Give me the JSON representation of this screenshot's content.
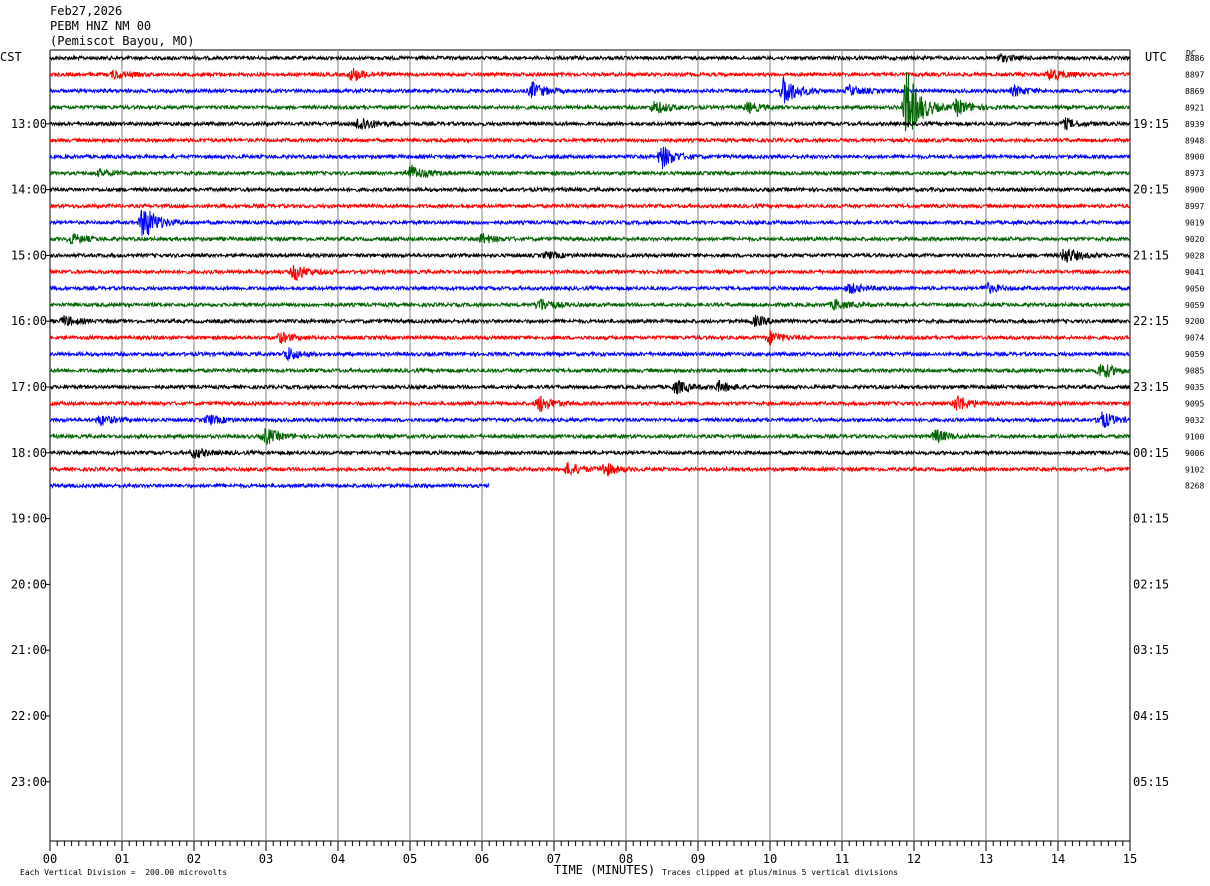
{
  "header": {
    "date": "Feb27,2026",
    "station": "PEBM HNZ NM 00",
    "location": "(Pemiscot Bayou, MO)"
  },
  "left_axis_label": "CST",
  "right_axis_label": "UTC",
  "dc_label": "DC",
  "footer": {
    "vertical_division": "Each Vertical Division =  200.00 microvolts",
    "clip_note": "Traces clipped at plus/minus 5 vertical divisions"
  },
  "colors": {
    "black": "#000000",
    "red": "#ff0000",
    "blue": "#0000ff",
    "green": "#006400",
    "grid": "#808080"
  },
  "chart_data": {
    "type": "line",
    "subtype": "helicorder seismogram",
    "xlabel": "TIME (MINUTES)",
    "x_ticks": [
      "00",
      "01",
      "02",
      "03",
      "04",
      "05",
      "06",
      "07",
      "08",
      "09",
      "10",
      "11",
      "12",
      "13",
      "14",
      "15"
    ],
    "xlim": [
      0,
      15
    ],
    "minutes_per_line": 15,
    "lines_per_hour": 4,
    "left_hour_labels": [
      "13:00",
      "14:00",
      "15:00",
      "16:00",
      "17:00",
      "18:00",
      "19:00",
      "20:00",
      "21:00",
      "22:00",
      "23:00"
    ],
    "right_hour_labels": [
      "19:15",
      "20:15",
      "21:15",
      "22:15",
      "23:15",
      "00:15",
      "01:15",
      "02:15",
      "03:15",
      "04:15",
      "05:15"
    ],
    "trace_color_cycle": [
      "black",
      "red",
      "blue",
      "green"
    ],
    "dc_offsets": [
      "8886",
      "8897",
      "8869",
      "8921",
      "8939",
      "8948",
      "8900",
      "8973",
      "8900",
      "8997",
      "9019",
      "9020",
      "9028",
      "9041",
      "9050",
      "9059",
      "9200",
      "9074",
      "9059",
      "9085",
      "9035",
      "9095",
      "9032",
      "9100",
      "9006",
      "9102",
      "8268"
    ],
    "last_trace_end_minute": 6.1,
    "events": [
      {
        "trace": 1,
        "minute": 0.9,
        "amp": 0.25
      },
      {
        "trace": 1,
        "minute": 4.2,
        "amp": 0.4
      },
      {
        "trace": 1,
        "minute": 13.9,
        "amp": 0.4
      },
      {
        "trace": 0,
        "minute": 13.2,
        "amp": 0.2
      },
      {
        "trace": 2,
        "minute": 6.7,
        "amp": 0.5
      },
      {
        "trace": 2,
        "minute": 10.2,
        "amp": 0.9
      },
      {
        "trace": 2,
        "minute": 11.1,
        "amp": 0.3
      },
      {
        "trace": 2,
        "minute": 13.4,
        "amp": 0.3
      },
      {
        "trace": 3,
        "minute": 8.4,
        "amp": 0.4
      },
      {
        "trace": 3,
        "minute": 9.7,
        "amp": 0.3
      },
      {
        "trace": 3,
        "minute": 11.9,
        "amp": 2.3
      },
      {
        "trace": 3,
        "minute": 12.6,
        "amp": 0.5
      },
      {
        "trace": 4,
        "minute": 4.3,
        "amp": 0.5
      },
      {
        "trace": 4,
        "minute": 14.1,
        "amp": 0.3
      },
      {
        "trace": 6,
        "minute": 8.5,
        "amp": 0.7
      },
      {
        "trace": 7,
        "minute": 5.0,
        "amp": 0.5
      },
      {
        "trace": 7,
        "minute": 0.7,
        "amp": 0.2
      },
      {
        "trace": 10,
        "minute": 1.3,
        "amp": 1.1
      },
      {
        "trace": 11,
        "minute": 0.3,
        "amp": 0.3
      },
      {
        "trace": 11,
        "minute": 6.0,
        "amp": 0.3
      },
      {
        "trace": 12,
        "minute": 6.9,
        "amp": 0.2
      },
      {
        "trace": 12,
        "minute": 14.1,
        "amp": 0.5
      },
      {
        "trace": 13,
        "minute": 3.4,
        "amp": 0.5
      },
      {
        "trace": 14,
        "minute": 11.1,
        "amp": 0.3
      },
      {
        "trace": 14,
        "minute": 13.0,
        "amp": 0.3
      },
      {
        "trace": 15,
        "minute": 6.8,
        "amp": 0.4
      },
      {
        "trace": 15,
        "minute": 10.9,
        "amp": 0.3
      },
      {
        "trace": 16,
        "minute": 0.2,
        "amp": 0.3
      },
      {
        "trace": 16,
        "minute": 9.8,
        "amp": 0.3
      },
      {
        "trace": 17,
        "minute": 3.2,
        "amp": 0.3
      },
      {
        "trace": 17,
        "minute": 10.0,
        "amp": 0.4
      },
      {
        "trace": 18,
        "minute": 3.3,
        "amp": 0.4
      },
      {
        "trace": 19,
        "minute": 14.6,
        "amp": 0.5
      },
      {
        "trace": 20,
        "minute": 8.7,
        "amp": 0.4
      },
      {
        "trace": 20,
        "minute": 9.3,
        "amp": 0.3
      },
      {
        "trace": 21,
        "minute": 6.8,
        "amp": 0.5
      },
      {
        "trace": 21,
        "minute": 12.6,
        "amp": 0.5
      },
      {
        "trace": 22,
        "minute": 0.7,
        "amp": 0.3
      },
      {
        "trace": 22,
        "minute": 2.2,
        "amp": 0.3
      },
      {
        "trace": 22,
        "minute": 14.6,
        "amp": 0.5
      },
      {
        "trace": 23,
        "minute": 3.0,
        "amp": 0.5
      },
      {
        "trace": 23,
        "minute": 12.3,
        "amp": 0.4
      },
      {
        "trace": 24,
        "minute": 2.0,
        "amp": 0.3
      },
      {
        "trace": 25,
        "minute": 7.2,
        "amp": 0.4
      },
      {
        "trace": 25,
        "minute": 7.7,
        "amp": 0.4
      }
    ]
  }
}
